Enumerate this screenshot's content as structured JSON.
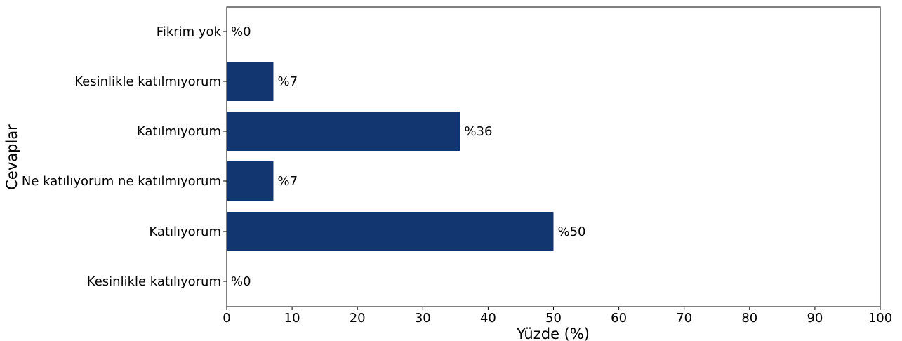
{
  "chart_data": {
    "type": "bar",
    "orientation": "horizontal",
    "categories": [
      "Kesinlikle katılıyorum",
      "Katılıyorum",
      "Ne katılıyorum ne katılmıyorum",
      "Katılmıyorum",
      "Kesinlikle katılmıyorum",
      "Fikrim yok"
    ],
    "values": [
      0,
      50,
      7.14,
      35.71,
      7.14,
      0
    ],
    "data_labels": [
      "%0",
      "%50",
      "%7",
      "%36",
      "%7",
      "%0"
    ],
    "xlabel": "Yüzde (%)",
    "ylabel": "Cevaplar",
    "xlim": [
      0,
      100
    ],
    "xticks": [
      "0",
      "10",
      "20",
      "30",
      "40",
      "50",
      "60",
      "70",
      "80",
      "90",
      "100"
    ],
    "bar_color": "#12366f",
    "grid": false
  }
}
